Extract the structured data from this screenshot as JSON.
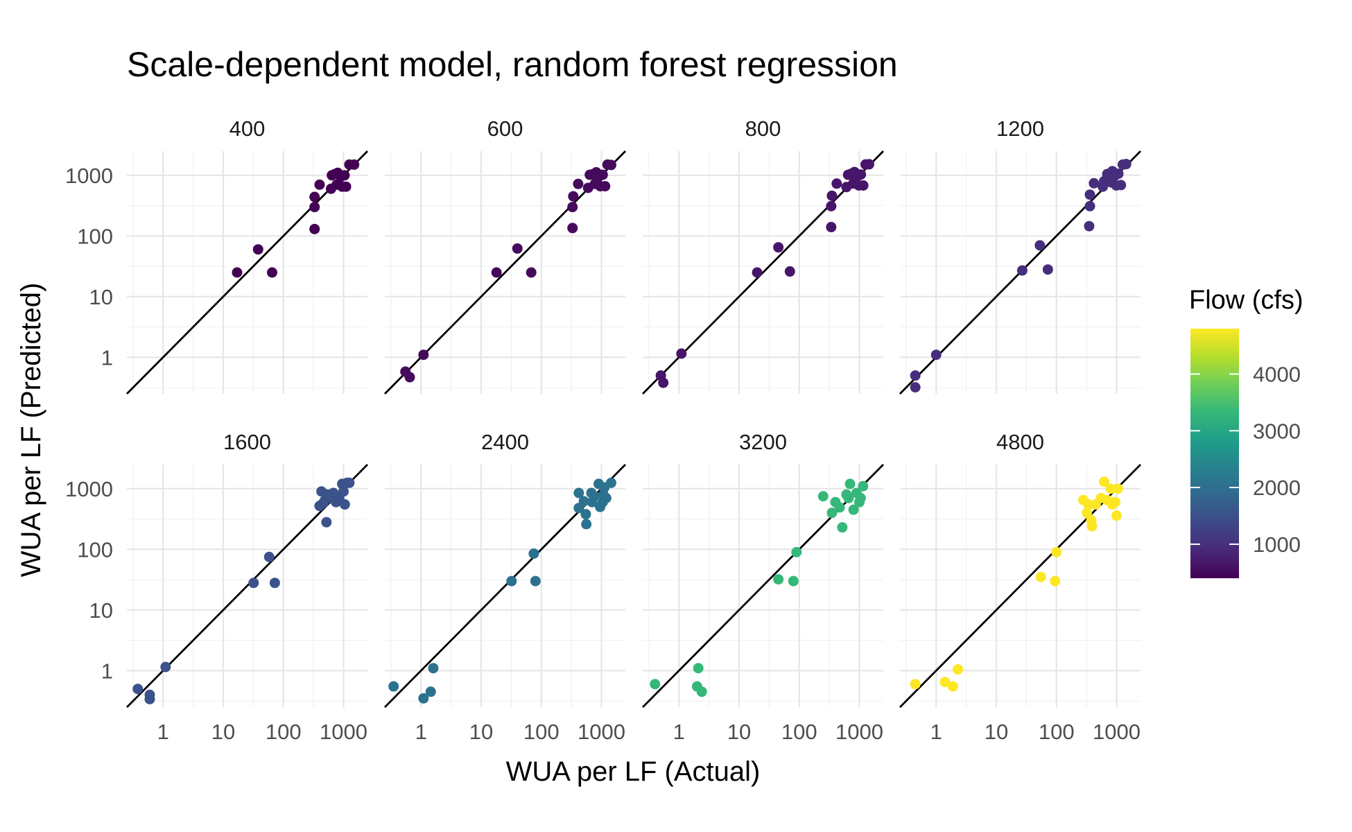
{
  "chart_data": {
    "type": "scatter",
    "title": "Scale-dependent model, random forest regression",
    "xlabel": "WUA per LF (Actual)",
    "ylabel": "WUA per LF (Predicted)",
    "x_scale": "log10",
    "y_scale": "log10",
    "xlim": [
      0.25,
      2500
    ],
    "ylim": [
      0.25,
      2500
    ],
    "x_ticks": [
      1,
      10,
      100,
      1000
    ],
    "x_tick_labels": [
      "1",
      "10",
      "100",
      "1000"
    ],
    "y_ticks": [
      1,
      10,
      100,
      1000
    ],
    "y_tick_labels": [
      "1",
      "10",
      "100",
      "1000"
    ],
    "reference_line": "y = x",
    "grid": true,
    "legend": {
      "title": "Flow (cfs)",
      "position": "right",
      "type": "colorbar",
      "range": [
        400,
        4800
      ],
      "ticks": [
        1000,
        2000,
        3000,
        4000
      ],
      "tick_labels": [
        "1000",
        "2000",
        "3000",
        "4000"
      ],
      "colors": [
        "#440154",
        "#482878",
        "#3e4989",
        "#31688e",
        "#26828e",
        "#1f9e89",
        "#35b779",
        "#6ece58",
        "#b5de2b",
        "#fde725"
      ]
    },
    "panels": [
      {
        "label": "400",
        "flow": 400,
        "color": "#440154",
        "points": [
          [
            17,
            25
          ],
          [
            38,
            60
          ],
          [
            65,
            25
          ],
          [
            330,
            130
          ],
          [
            330,
            300
          ],
          [
            330,
            440
          ],
          [
            400,
            700
          ],
          [
            620,
            600
          ],
          [
            640,
            1000
          ],
          [
            720,
            1050
          ],
          [
            770,
            700
          ],
          [
            800,
            1100
          ],
          [
            900,
            950
          ],
          [
            950,
            650
          ],
          [
            1040,
            1000
          ],
          [
            1100,
            650
          ],
          [
            1250,
            1500
          ],
          [
            1500,
            1500
          ]
        ]
      },
      {
        "label": "600",
        "flow": 600,
        "color": "#450a5c",
        "points": [
          [
            0.55,
            0.58
          ],
          [
            0.65,
            0.47
          ],
          [
            1.1,
            1.1
          ],
          [
            18,
            25
          ],
          [
            40,
            62
          ],
          [
            68,
            25
          ],
          [
            330,
            135
          ],
          [
            330,
            300
          ],
          [
            340,
            450
          ],
          [
            410,
            720
          ],
          [
            600,
            620
          ],
          [
            640,
            1020
          ],
          [
            730,
            1050
          ],
          [
            780,
            720
          ],
          [
            820,
            1120
          ],
          [
            900,
            950
          ],
          [
            960,
            660
          ],
          [
            1050,
            1020
          ],
          [
            1150,
            660
          ],
          [
            1260,
            1500
          ],
          [
            1450,
            1480
          ]
        ]
      },
      {
        "label": "800",
        "flow": 800,
        "color": "#47156a",
        "points": [
          [
            0.5,
            0.5
          ],
          [
            0.55,
            0.38
          ],
          [
            1.1,
            1.15
          ],
          [
            20,
            25
          ],
          [
            45,
            65
          ],
          [
            70,
            26
          ],
          [
            340,
            140
          ],
          [
            340,
            310
          ],
          [
            350,
            460
          ],
          [
            420,
            730
          ],
          [
            610,
            640
          ],
          [
            650,
            1020
          ],
          [
            730,
            1060
          ],
          [
            790,
            730
          ],
          [
            830,
            1130
          ],
          [
            920,
            960
          ],
          [
            980,
            680
          ],
          [
            1060,
            1030
          ],
          [
            1160,
            680
          ],
          [
            1270,
            1510
          ],
          [
            1450,
            1520
          ]
        ]
      },
      {
        "label": "1200",
        "flow": 1200,
        "color": "#472e7c",
        "points": [
          [
            0.45,
            0.5
          ],
          [
            0.45,
            0.32
          ],
          [
            1.0,
            1.1
          ],
          [
            27,
            27
          ],
          [
            53,
            70
          ],
          [
            72,
            28
          ],
          [
            350,
            145
          ],
          [
            360,
            310
          ],
          [
            360,
            480
          ],
          [
            420,
            740
          ],
          [
            590,
            650
          ],
          [
            620,
            800
          ],
          [
            700,
            1050
          ],
          [
            820,
            760
          ],
          [
            850,
            1170
          ],
          [
            930,
            980
          ],
          [
            990,
            680
          ],
          [
            1070,
            1060
          ],
          [
            1180,
            690
          ],
          [
            1270,
            1500
          ],
          [
            1440,
            1530
          ]
        ]
      },
      {
        "label": "1600",
        "flow": 1600,
        "color": "#3b528b",
        "points": [
          [
            0.38,
            0.5
          ],
          [
            0.6,
            0.34
          ],
          [
            0.6,
            0.4
          ],
          [
            1.1,
            1.15
          ],
          [
            32,
            28
          ],
          [
            58,
            75
          ],
          [
            72,
            28
          ],
          [
            400,
            520
          ],
          [
            430,
            900
          ],
          [
            460,
            580
          ],
          [
            490,
            640
          ],
          [
            520,
            280
          ],
          [
            540,
            800
          ],
          [
            650,
            700
          ],
          [
            680,
            850
          ],
          [
            750,
            600
          ],
          [
            850,
            700
          ],
          [
            950,
            1200
          ],
          [
            1000,
            900
          ],
          [
            1050,
            550
          ],
          [
            1150,
            1250
          ],
          [
            1250,
            1250
          ]
        ]
      },
      {
        "label": "2400",
        "flow": 2400,
        "color": "#2c728e",
        "points": [
          [
            0.35,
            0.55
          ],
          [
            1.1,
            0.35
          ],
          [
            1.45,
            0.45
          ],
          [
            1.6,
            1.1
          ],
          [
            32,
            30
          ],
          [
            75,
            85
          ],
          [
            80,
            30
          ],
          [
            420,
            850
          ],
          [
            420,
            480
          ],
          [
            510,
            620
          ],
          [
            550,
            380
          ],
          [
            560,
            260
          ],
          [
            680,
            850
          ],
          [
            700,
            600
          ],
          [
            760,
            750
          ],
          [
            900,
            1200
          ],
          [
            950,
            500
          ],
          [
            1050,
            600
          ],
          [
            1080,
            800
          ],
          [
            1120,
            1050
          ],
          [
            1200,
            700
          ],
          [
            1450,
            1250
          ]
        ]
      },
      {
        "label": "3200",
        "flow": 3200,
        "color": "#35b779",
        "points": [
          [
            0.4,
            0.6
          ],
          [
            2.0,
            0.55
          ],
          [
            2.1,
            1.1
          ],
          [
            2.4,
            0.45
          ],
          [
            45,
            32
          ],
          [
            80,
            30
          ],
          [
            90,
            90
          ],
          [
            250,
            750
          ],
          [
            350,
            400
          ],
          [
            400,
            600
          ],
          [
            470,
            490
          ],
          [
            520,
            230
          ],
          [
            610,
            800
          ],
          [
            660,
            700
          ],
          [
            700,
            1200
          ],
          [
            800,
            450
          ],
          [
            900,
            850
          ],
          [
            1000,
            600
          ],
          [
            1050,
            700
          ],
          [
            1150,
            1100
          ]
        ]
      },
      {
        "label": "4800",
        "flow": 4800,
        "color": "#fde725",
        "points": [
          [
            0.45,
            0.6
          ],
          [
            1.4,
            0.65
          ],
          [
            1.9,
            0.55
          ],
          [
            2.3,
            1.05
          ],
          [
            55,
            35
          ],
          [
            95,
            30
          ],
          [
            100,
            90
          ],
          [
            280,
            650
          ],
          [
            320,
            400
          ],
          [
            340,
            550
          ],
          [
            380,
            300
          ],
          [
            390,
            240
          ],
          [
            450,
            550
          ],
          [
            550,
            700
          ],
          [
            620,
            1300
          ],
          [
            700,
            650
          ],
          [
            800,
            1000
          ],
          [
            850,
            550
          ],
          [
            950,
            600
          ],
          [
            1000,
            360
          ],
          [
            1050,
            1000
          ]
        ]
      }
    ]
  }
}
